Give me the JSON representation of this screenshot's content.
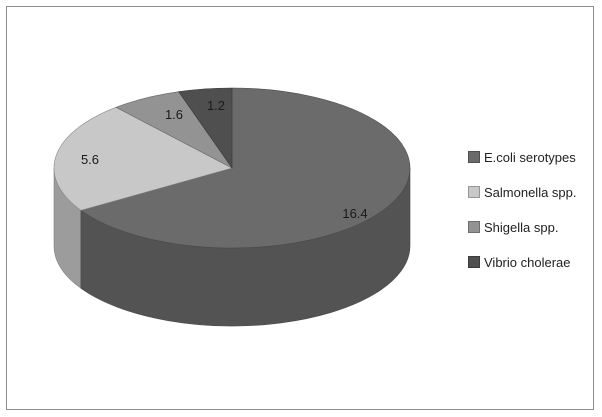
{
  "chart_data": {
    "type": "pie",
    "style": "3d",
    "title": "",
    "categories": [
      "E.coli serotypes",
      "Salmonella spp.",
      "Shigella spp.",
      "Vibrio cholerae"
    ],
    "values": [
      16.4,
      5.6,
      1.6,
      1.2
    ],
    "data_labels": [
      "16.4",
      "5.6",
      "1.6",
      "1.2"
    ],
    "colors": [
      "#6b6b6b",
      "#c8c8c8",
      "#939393",
      "#4f4f4f"
    ],
    "legend_position": "right",
    "start_angle": "top (12 o'clock), clockwise"
  }
}
